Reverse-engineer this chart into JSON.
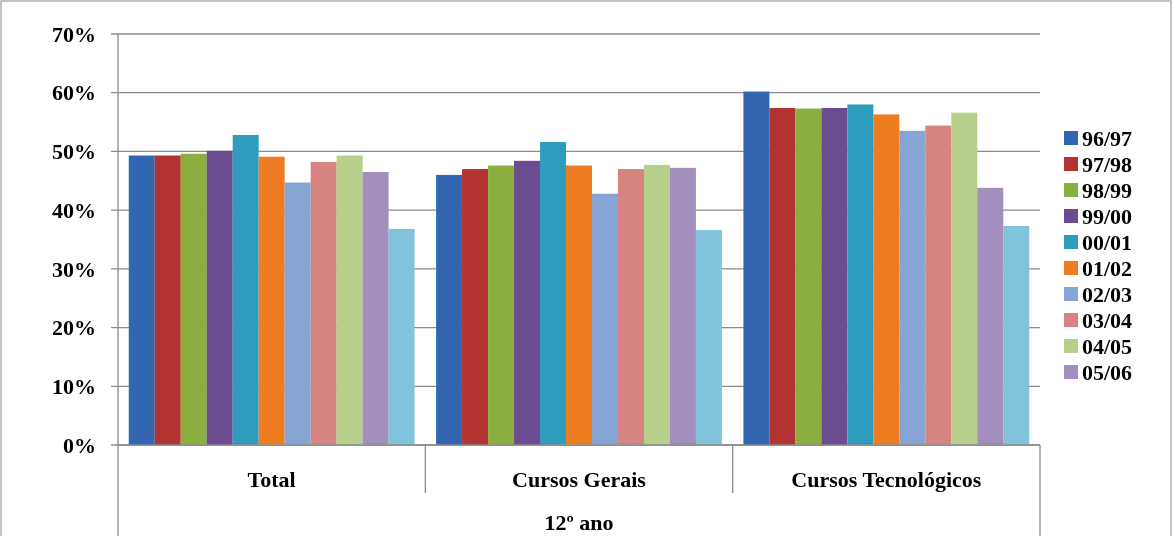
{
  "chart_data": {
    "type": "bar",
    "xlabel": "12º ano",
    "categories": [
      "Total",
      "Cursos Gerais",
      "Cursos Tecnológicos"
    ],
    "series": [
      {
        "name": "96/97",
        "color": "#3366b0",
        "values": [
          49.3,
          46.0,
          60.2
        ]
      },
      {
        "name": "97/98",
        "color": "#b33232",
        "values": [
          49.3,
          47.0,
          57.4
        ]
      },
      {
        "name": "98/99",
        "color": "#8bae3e",
        "values": [
          49.6,
          47.6,
          57.3
        ]
      },
      {
        "name": "99/00",
        "color": "#6b4c91",
        "values": [
          50.1,
          48.4,
          57.4
        ]
      },
      {
        "name": "00/01",
        "color": "#2e9dbd",
        "values": [
          52.8,
          51.6,
          58.0
        ]
      },
      {
        "name": "01/02",
        "color": "#ee7d22",
        "values": [
          49.1,
          47.6,
          56.3
        ]
      },
      {
        "name": "02/03",
        "color": "#86a4d4",
        "values": [
          44.7,
          42.8,
          53.5
        ]
      },
      {
        "name": "03/04",
        "color": "#d58481",
        "values": [
          48.2,
          47.0,
          54.4
        ]
      },
      {
        "name": "04/05",
        "color": "#b6d08b",
        "values": [
          49.3,
          47.7,
          56.6
        ]
      },
      {
        "name": "05/06",
        "color": "#a28fbd",
        "values": [
          46.5,
          47.2,
          43.8
        ]
      },
      {
        "color": "#81c3db",
        "values": [
          36.8,
          36.6,
          37.3
        ]
      }
    ],
    "ylim": [
      0,
      70
    ],
    "yticks": [
      {
        "value": 0,
        "label": "0%"
      },
      {
        "value": 10,
        "label": "10%"
      },
      {
        "value": 20,
        "label": "20%"
      },
      {
        "value": 30,
        "label": "30%"
      },
      {
        "value": 40,
        "label": "40%"
      },
      {
        "value": 50,
        "label": "50%"
      },
      {
        "value": 60,
        "label": "60%"
      },
      {
        "value": 70,
        "label": "70%"
      }
    ],
    "grid": "y",
    "legend": "right"
  }
}
